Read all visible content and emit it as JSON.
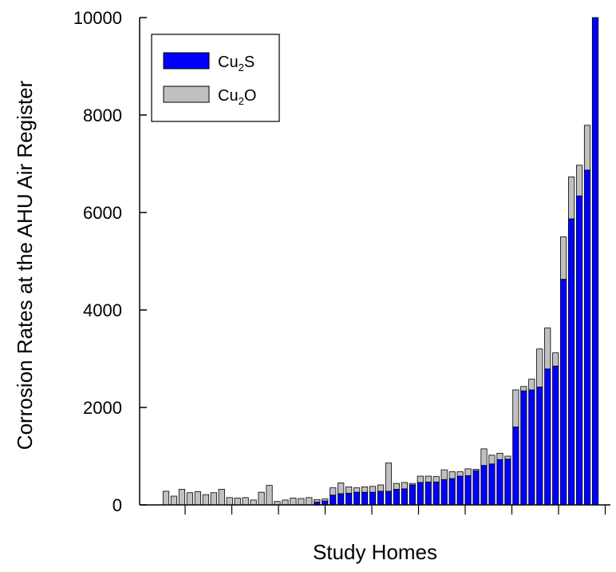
{
  "chart_data": {
    "type": "bar",
    "stacked": true,
    "title": "",
    "xlabel": "Study Homes",
    "ylabel": "Corrosion Rates at the AHU Air Register",
    "ylim": [
      0,
      10000
    ],
    "yticks": [
      "0",
      "2000",
      "4000",
      "6000",
      "8000",
      "10000"
    ],
    "legend": {
      "placement": "top-left",
      "entries": [
        {
          "base": "Cu",
          "sub": "2",
          "suffix": "S",
          "color": "#0000ff"
        },
        {
          "base": "Cu",
          "sub": "2",
          "suffix": "O",
          "color": "#c0c0c0"
        }
      ]
    },
    "colors": {
      "Cu2S": "#0000ff",
      "Cu2O": "#c0c0c0"
    },
    "series": [
      {
        "key": "Cu2S",
        "values": [
          0,
          0,
          0,
          0,
          0,
          0,
          0,
          0,
          0,
          0,
          0,
          0,
          0,
          0,
          0,
          0,
          0,
          0,
          0,
          60,
          80,
          200,
          230,
          240,
          260,
          260,
          260,
          280,
          280,
          320,
          330,
          410,
          460,
          470,
          470,
          520,
          540,
          590,
          600,
          700,
          810,
          840,
          930,
          940,
          1600,
          2340,
          2360,
          2420,
          2790,
          2850,
          4630,
          5870,
          6340,
          6870,
          10000
        ]
      },
      {
        "key": "Cu2O",
        "values": [
          280,
          180,
          320,
          250,
          270,
          210,
          250,
          320,
          150,
          140,
          150,
          100,
          260,
          400,
          70,
          100,
          140,
          130,
          150,
          50,
          40,
          150,
          220,
          130,
          90,
          110,
          120,
          130,
          580,
          120,
          130,
          30,
          130,
          120,
          110,
          200,
          140,
          90,
          140,
          30,
          340,
          180,
          130,
          60,
          760,
          90,
          220,
          780,
          840,
          270,
          870,
          860,
          630,
          920,
          0
        ]
      }
    ]
  }
}
